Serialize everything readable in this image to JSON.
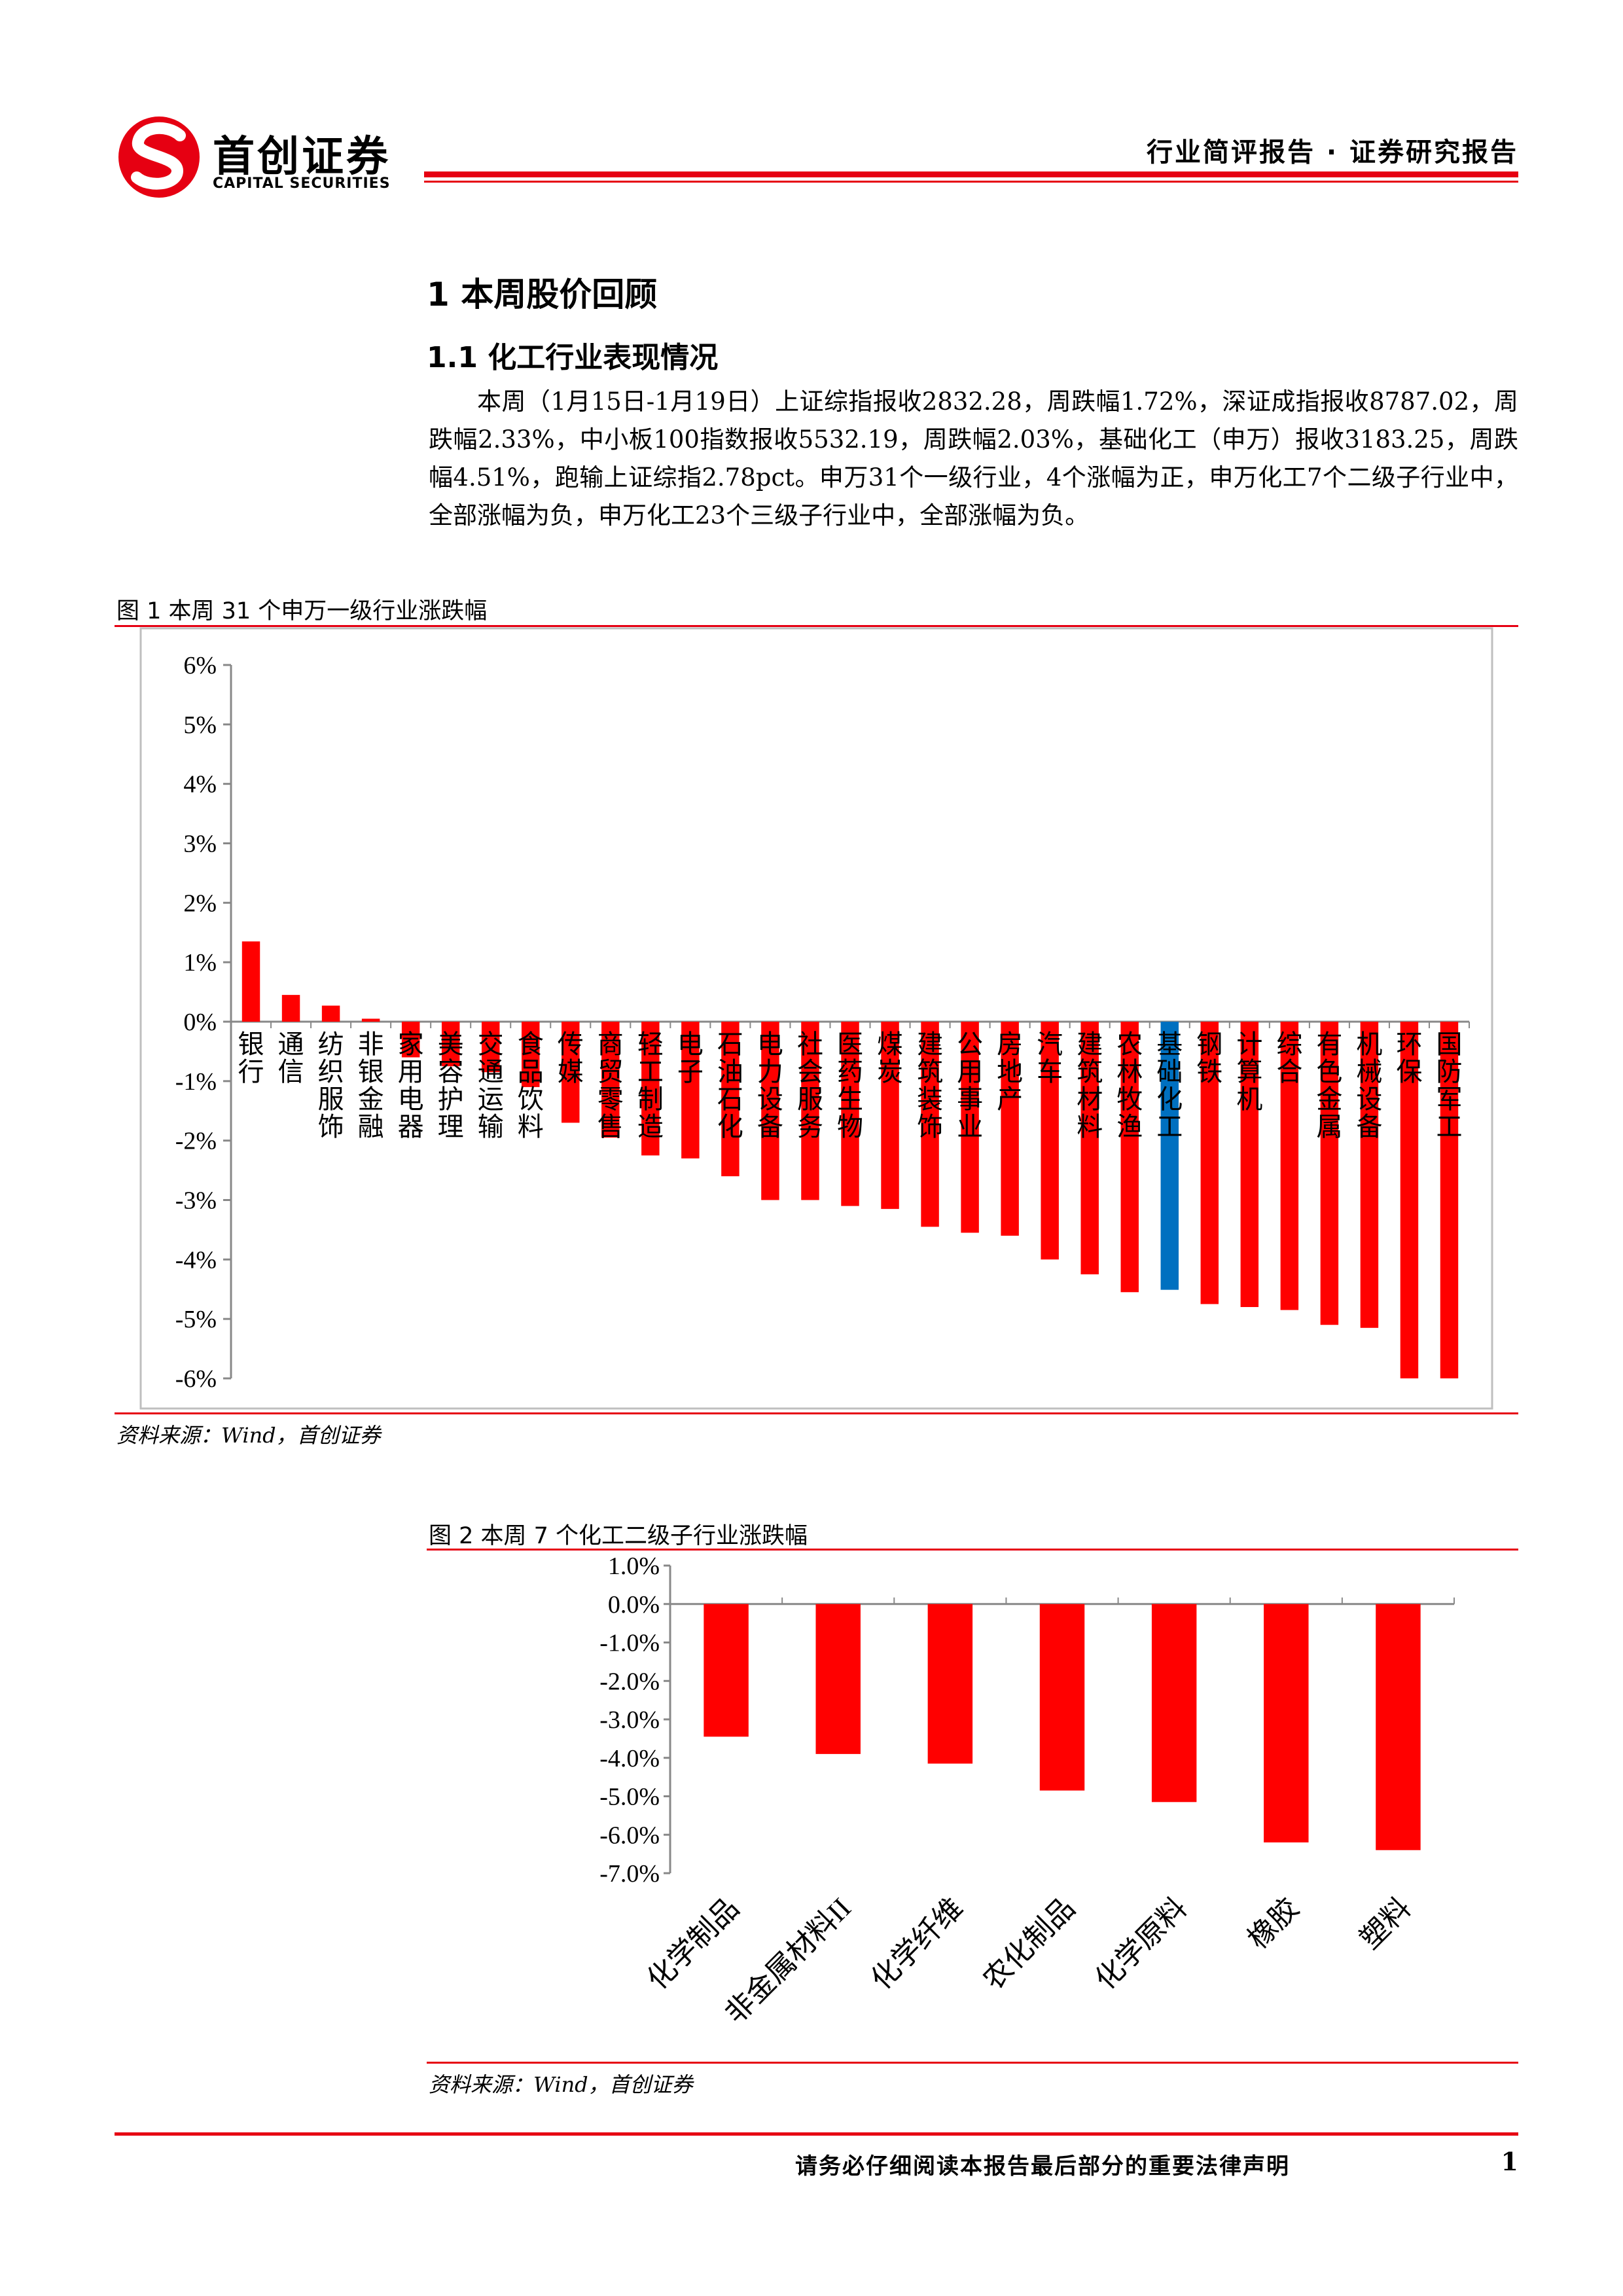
{
  "header": {
    "brand_cn": "首创证券",
    "brand_en": "CAPITAL SECURITIES",
    "report_type": "行业简评报告 · 证券研究报告",
    "accent_color": "#e60012"
  },
  "section": {
    "h1": "1 本周股价回顾",
    "h2": "1.1 化工行业表现情况",
    "paragraph": "本周（1月15日-1月19日）上证综指报收2832.28，周跌幅1.72%，深证成指报收8787.02，周跌幅2.33%，中小板100指数报收5532.19，周跌幅2.03%，基础化工（申万）报收3183.25，周跌幅4.51%，跑输上证综指2.78pct。申万31个一级行业，4个涨幅为正，申万化工7个二级子行业中，全部涨幅为负，申万化工23个三级子行业中，全部涨幅为负。"
  },
  "figure1": {
    "title": "图 1  本周 31 个申万一级行业涨跌幅",
    "source": "资料来源：Wind，首创证券"
  },
  "figure2": {
    "title": "图 2  本周 7 个化工二级子行业涨跌幅",
    "source": "资料来源：Wind，首创证券"
  },
  "chart_data": [
    {
      "type": "bar",
      "categories": [
        "银行",
        "通信",
        "纺织服饰",
        "非银金融",
        "家用电器",
        "美容护理",
        "交通运输",
        "食品饮料",
        "传媒",
        "商贸零售",
        "轻工制造",
        "电子",
        "石油石化",
        "电力设备",
        "社会服务",
        "医药生物",
        "煤炭",
        "建筑装饰",
        "公用事业",
        "房地产",
        "汽车",
        "建筑材料",
        "农林牧渔",
        "基础化工",
        "钢铁",
        "计算机",
        "综合",
        "有色金属",
        "机械设备",
        "环保",
        "国防军工"
      ],
      "values": [
        1.35,
        0.45,
        0.27,
        0.05,
        -0.6,
        -0.75,
        -0.85,
        -1.1,
        -1.7,
        -1.95,
        -2.25,
        -2.3,
        -2.6,
        -3.0,
        -3.0,
        -3.1,
        -3.15,
        -3.45,
        -3.55,
        -3.6,
        -4.0,
        -4.25,
        -4.55,
        -4.51,
        -4.75,
        -4.8,
        -4.85,
        -5.1,
        -5.15,
        -6.0,
        -6.0
      ],
      "highlight": "基础化工",
      "bar_color": "#ff0000",
      "highlight_color": "#0070c0",
      "yticks": [
        "6%",
        "5%",
        "4%",
        "3%",
        "2%",
        "1%",
        "0%",
        "-1%",
        "-2%",
        "-3%",
        "-4%",
        "-5%",
        "-6%"
      ],
      "ylim": [
        -6,
        6
      ]
    },
    {
      "type": "bar",
      "categories": [
        "化学制品",
        "非金属材料II",
        "化学纤维",
        "农化制品",
        "化学原料",
        "橡胶",
        "塑料"
      ],
      "values": [
        -3.45,
        -3.9,
        -4.15,
        -4.85,
        -5.15,
        -6.2,
        -6.4
      ],
      "bar_color": "#ff0000",
      "yticks": [
        "1.0%",
        "0.0%",
        "-1.0%",
        "-2.0%",
        "-3.0%",
        "-4.0%",
        "-5.0%",
        "-6.0%",
        "-7.0%"
      ],
      "ylim": [
        -7,
        1
      ]
    }
  ],
  "footer": {
    "note": "请务必仔细阅读本报告最后部分的重要法律声明",
    "page_number": "1"
  }
}
